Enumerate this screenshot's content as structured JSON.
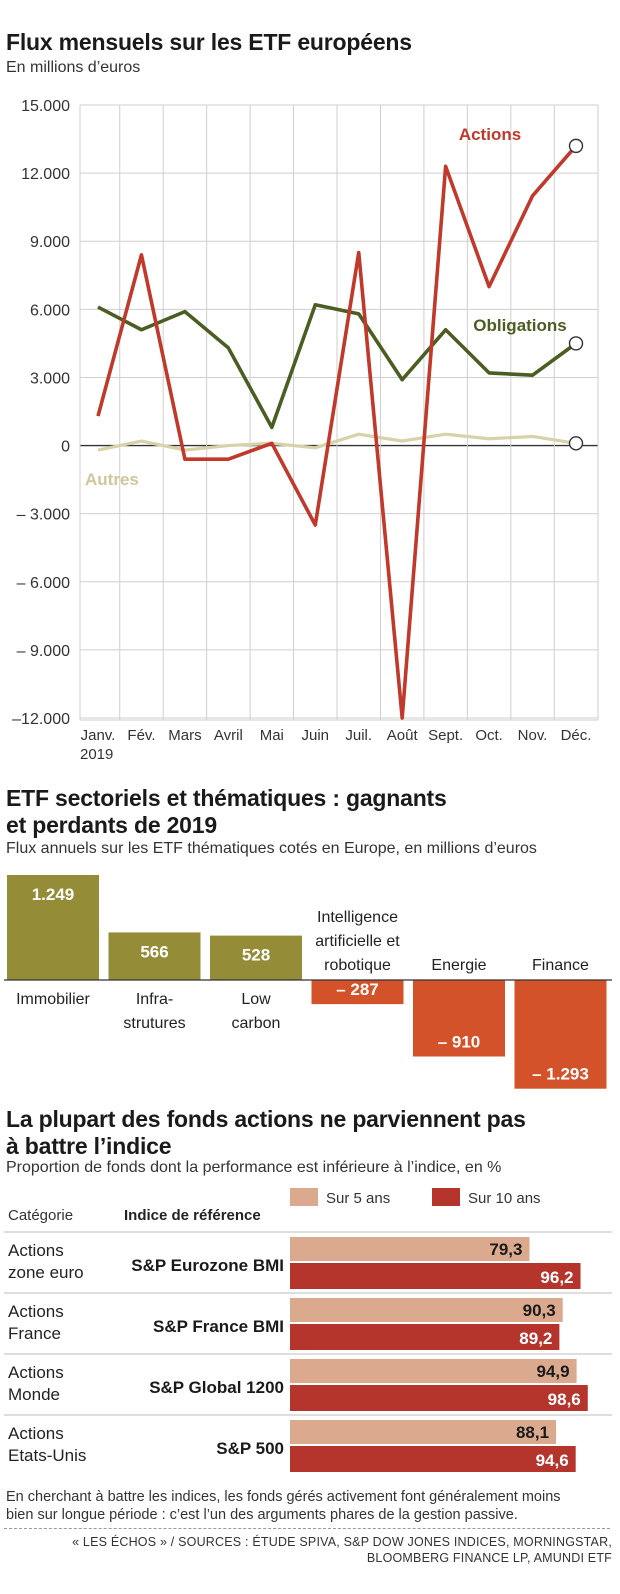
{
  "chart_data": [
    {
      "type": "line",
      "title": "Flux mensuels sur les ETF européens",
      "subtitle": "En millions d’euros",
      "categories": [
        "Janv.",
        "Fév.",
        "Mars",
        "Avril",
        "Mai",
        "Juin",
        "Juil.",
        "Août",
        "Sept.",
        "Oct.",
        "Nov.",
        "Déc."
      ],
      "year_label": "2019",
      "ylim": [
        -12000,
        15000
      ],
      "yticks": [
        15000,
        12000,
        9000,
        6000,
        3000,
        0,
        -3000,
        -6000,
        -9000,
        -12000
      ],
      "ytick_labels": [
        "15.000",
        "12.000",
        "9.000",
        "6.000",
        "3.000",
        "0",
        "– 3.000",
        "– 6.000",
        "– 9.000",
        "–12.000"
      ],
      "series": [
        {
          "name": "Actions",
          "color": "#c0392b",
          "values": [
            1300,
            8400,
            -600,
            -600,
            100,
            -3500,
            8500,
            -12000,
            12300,
            7000,
            11000,
            13200
          ]
        },
        {
          "name": "Obligations",
          "color": "#4a5e23",
          "values": [
            6100,
            5100,
            5900,
            4300,
            800,
            6200,
            5800,
            2900,
            5100,
            3200,
            3100,
            4500
          ]
        },
        {
          "name": "Autres",
          "color": "#d8d2a8",
          "values": [
            -200,
            200,
            -200,
            0,
            100,
            -100,
            500,
            200,
            500,
            300,
            400,
            100
          ]
        }
      ],
      "grid": true
    },
    {
      "type": "bar",
      "title": "ETF sectoriels et thématiques : gagnants et perdants de 2019",
      "title_lines": [
        "ETF sectoriels et thématiques : gagnants",
        "et perdants de 2019"
      ],
      "subtitle": "Flux annuels sur les ETF thématiques cotés en Europe, en millions d’euros",
      "categories": [
        "Immobilier",
        "Infra-strutures",
        "Low carbon",
        "Intelligence artificielle et robotique",
        "Energie",
        "Finance"
      ],
      "category_lines": [
        [
          "Immobilier"
        ],
        [
          "Infra-",
          "strutures"
        ],
        [
          "Low",
          "carbon"
        ],
        [
          "Intelligence",
          "artificielle et",
          "robotique"
        ],
        [
          "Energie"
        ],
        [
          "Finance"
        ]
      ],
      "values": [
        1249,
        566,
        528,
        -287,
        -910,
        -1293
      ],
      "value_labels": [
        "1.249",
        "566",
        "528",
        "– 287",
        "– 910",
        "– 1.293"
      ],
      "colors": {
        "positive": "#948c37",
        "negative": "#d4522a"
      }
    },
    {
      "type": "bar",
      "orientation": "horizontal",
      "title": "La plupart des fonds actions ne parviennent pas à battre l’indice",
      "title_lines": [
        "La plupart des fonds actions ne parviennent pas",
        "à battre l’indice"
      ],
      "subtitle": "Proportion de fonds dont la performance  est inférieure à l’indice, en %",
      "header_category": "Catégorie",
      "header_index": "Indice de référence",
      "xlim": [
        0,
        100
      ],
      "rows": [
        {
          "category_lines": [
            "Actions",
            "zone euro"
          ],
          "index": "S&P Eurozone BMI",
          "v5": 79.3,
          "v10": 96.2,
          "v5_label": "79,3",
          "v10_label": "96,2"
        },
        {
          "category_lines": [
            "Actions",
            "France"
          ],
          "index": "S&P France BMI",
          "v5": 90.3,
          "v10": 89.2,
          "v5_label": "90,3",
          "v10_label": "89,2"
        },
        {
          "category_lines": [
            "Actions",
            "Monde"
          ],
          "index": "S&P Global 1200",
          "v5": 94.9,
          "v10": 98.6,
          "v5_label": "94,9",
          "v10_label": "98,6"
        },
        {
          "category_lines": [
            "Actions",
            "Etats-Unis"
          ],
          "index": "S&P 500",
          "v5": 88.1,
          "v10": 94.6,
          "v5_label": "88,1",
          "v10_label": "94,6"
        }
      ],
      "series": [
        {
          "name": "Sur 5 ans",
          "color": "#dba98d"
        },
        {
          "name": "Sur 10 ans",
          "color": "#b5352d"
        }
      ]
    }
  ],
  "footer": {
    "note_lines": [
      "En cherchant à battre les indices, les fonds gérés activement font généralement moins",
      "bien sur longue période : c’est l’un des arguments phares de la gestion passive."
    ],
    "source_lines": [
      "« LES ÉCHOS » / SOURCES : ÉTUDE SPIVA, S&P DOW JONES INDICES, MORNINGSTAR,",
      "BLOOMBERG FINANCE LP, AMUNDI ETF"
    ]
  }
}
